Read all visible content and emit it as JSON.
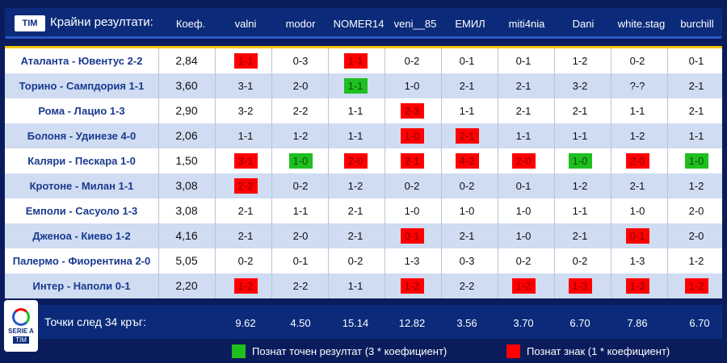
{
  "header": {
    "logo": "TIM",
    "title": "Крайни резултати:",
    "coef": "Коеф.",
    "players": [
      "valni",
      "modor",
      "NOMER14",
      "veni__85",
      "ЕМИЛ",
      "miti4nia",
      "Dani",
      "white.stag",
      "burchill"
    ]
  },
  "rows": [
    {
      "match": "Аталанта - Ювентус 2-2",
      "coef": "2,84",
      "preds": [
        "1-1",
        "0-3",
        "1-1",
        "0-2",
        "0-1",
        "0-1",
        "1-2",
        "0-2",
        "0-1"
      ],
      "status": [
        "r",
        "",
        "r",
        "",
        "",
        "",
        "",
        "",
        ""
      ]
    },
    {
      "match": "Торино - Сампдория 1-1",
      "coef": "3,60",
      "preds": [
        "3-1",
        "2-0",
        "1-1",
        "1-0",
        "2-1",
        "2-1",
        "3-2",
        "?-?",
        "2-1"
      ],
      "status": [
        "",
        "",
        "g",
        "",
        "",
        "",
        "",
        "",
        ""
      ]
    },
    {
      "match": "Рома - Лацио 1-3",
      "coef": "2,90",
      "preds": [
        "3-2",
        "2-2",
        "1-1",
        "2-3",
        "1-1",
        "2-1",
        "2-1",
        "1-1",
        "2-1"
      ],
      "status": [
        "",
        "",
        "",
        "r",
        "",
        "",
        "",
        "",
        ""
      ]
    },
    {
      "match": "Болоня - Удинезе 4-0",
      "coef": "2,06",
      "preds": [
        "1-1",
        "1-2",
        "1-1",
        "1-0",
        "2-1",
        "1-1",
        "1-1",
        "1-2",
        "1-1"
      ],
      "status": [
        "",
        "",
        "",
        "r",
        "r",
        "",
        "",
        "",
        ""
      ]
    },
    {
      "match": "Каляри - Пескара 1-0",
      "coef": "1,50",
      "preds": [
        "3-1",
        "1-0",
        "2-0",
        "2-1",
        "4-2",
        "2-0",
        "1-0",
        "2-0",
        "1-0"
      ],
      "status": [
        "r",
        "g",
        "r",
        "r",
        "r",
        "r",
        "g",
        "r",
        "g"
      ]
    },
    {
      "match": "Кротоне - Милан 1-1",
      "coef": "3,08",
      "preds": [
        "2-2",
        "0-2",
        "1-2",
        "0-2",
        "0-2",
        "0-1",
        "1-2",
        "2-1",
        "1-2"
      ],
      "status": [
        "r",
        "",
        "",
        "",
        "",
        "",
        "",
        "",
        ""
      ]
    },
    {
      "match": "Емполи - Сасуоло 1-3",
      "coef": "3,08",
      "preds": [
        "2-1",
        "1-1",
        "2-1",
        "1-0",
        "1-0",
        "1-0",
        "1-1",
        "1-0",
        "2-0"
      ],
      "status": [
        "",
        "",
        "",
        "",
        "",
        "",
        "",
        "",
        ""
      ]
    },
    {
      "match": "Дженоа - Киево 1-2",
      "coef": "4,16",
      "preds": [
        "2-1",
        "2-0",
        "2-1",
        "0-1",
        "2-1",
        "1-0",
        "2-1",
        "0-1",
        "2-0"
      ],
      "status": [
        "",
        "",
        "",
        "r",
        "",
        "",
        "",
        "r",
        ""
      ]
    },
    {
      "match": "Палермо - Фиорентина 2-0",
      "coef": "5,05",
      "preds": [
        "0-2",
        "0-1",
        "0-2",
        "1-3",
        "0-3",
        "0-2",
        "0-2",
        "1-3",
        "1-2"
      ],
      "status": [
        "",
        "",
        "",
        "",
        "",
        "",
        "",
        "",
        ""
      ]
    },
    {
      "match": "Интер - Наполи 0-1",
      "coef": "2,20",
      "preds": [
        "1-2",
        "2-2",
        "1-1",
        "1-2",
        "2-2",
        "1-2",
        "1-3",
        "1-3",
        "1-2"
      ],
      "status": [
        "r",
        "",
        "",
        "r",
        "",
        "r",
        "r",
        "r",
        "r"
      ]
    }
  ],
  "footer": {
    "logo_line1": "SERIE A",
    "logo_line2": "TIM",
    "points_title": "Точки след 34 кръг:",
    "points": [
      "9.62",
      "4.50",
      "15.14",
      "12.82",
      "3.56",
      "3.70",
      "6.70",
      "7.86",
      "6.70"
    ]
  },
  "legend": {
    "exact": {
      "color": "#1fbf1f",
      "label": "Познат точен резултат (3 * коефициент)"
    },
    "sign": {
      "color": "#ff0000",
      "label": "Познат знак (1 * коефициент)"
    }
  }
}
